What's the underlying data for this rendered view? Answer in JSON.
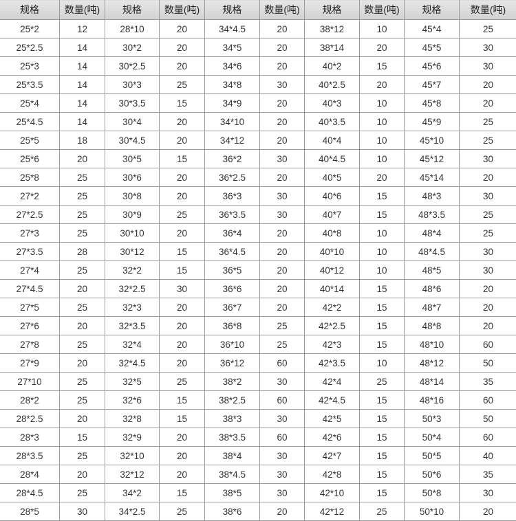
{
  "table": {
    "headers": [
      "规格",
      "数量(吨)",
      "规格",
      "数量(吨)",
      "规格",
      "数量(吨)",
      "规格",
      "数量(吨)",
      "规格",
      "数量(吨)"
    ],
    "rows": [
      [
        "25*2",
        "12",
        "28*10",
        "20",
        "34*4.5",
        "20",
        "38*12",
        "10",
        "45*4",
        "25"
      ],
      [
        "25*2.5",
        "14",
        "30*2",
        "20",
        "34*5",
        "20",
        "38*14",
        "20",
        "45*5",
        "30"
      ],
      [
        "25*3",
        "14",
        "30*2.5",
        "20",
        "34*6",
        "20",
        "40*2",
        "15",
        "45*6",
        "30"
      ],
      [
        "25*3.5",
        "14",
        "30*3",
        "25",
        "34*8",
        "30",
        "40*2.5",
        "20",
        "45*7",
        "20"
      ],
      [
        "25*4",
        "14",
        "30*3.5",
        "15",
        "34*9",
        "20",
        "40*3",
        "10",
        "45*8",
        "20"
      ],
      [
        "25*4.5",
        "14",
        "30*4",
        "20",
        "34*10",
        "20",
        "40*3.5",
        "10",
        "45*9",
        "25"
      ],
      [
        "25*5",
        "18",
        "30*4.5",
        "20",
        "34*12",
        "20",
        "40*4",
        "10",
        "45*10",
        "25"
      ],
      [
        "25*6",
        "20",
        "30*5",
        "15",
        "36*2",
        "30",
        "40*4.5",
        "10",
        "45*12",
        "30"
      ],
      [
        "25*8",
        "25",
        "30*6",
        "20",
        "36*2.5",
        "20",
        "40*5",
        "20",
        "45*14",
        "20"
      ],
      [
        "27*2",
        "25",
        "30*8",
        "20",
        "36*3",
        "30",
        "40*6",
        "15",
        "48*3",
        "30"
      ],
      [
        "27*2.5",
        "25",
        "30*9",
        "25",
        "36*3.5",
        "30",
        "40*7",
        "15",
        "48*3.5",
        "25"
      ],
      [
        "27*3",
        "25",
        "30*10",
        "20",
        "36*4",
        "20",
        "40*8",
        "10",
        "48*4",
        "25"
      ],
      [
        "27*3.5",
        "28",
        "30*12",
        "15",
        "36*4.5",
        "20",
        "40*10",
        "10",
        "48*4.5",
        "30"
      ],
      [
        "27*4",
        "25",
        "32*2",
        "15",
        "36*5",
        "20",
        "40*12",
        "10",
        "48*5",
        "30"
      ],
      [
        "27*4.5",
        "20",
        "32*2.5",
        "30",
        "36*6",
        "20",
        "40*14",
        "15",
        "48*6",
        "20"
      ],
      [
        "27*5",
        "25",
        "32*3",
        "20",
        "36*7",
        "20",
        "42*2",
        "15",
        "48*7",
        "20"
      ],
      [
        "27*6",
        "20",
        "32*3.5",
        "20",
        "36*8",
        "25",
        "42*2.5",
        "15",
        "48*8",
        "20"
      ],
      [
        "27*8",
        "25",
        "32*4",
        "20",
        "36*10",
        "25",
        "42*3",
        "15",
        "48*10",
        "60"
      ],
      [
        "27*9",
        "20",
        "32*4.5",
        "20",
        "36*12",
        "60",
        "42*3.5",
        "10",
        "48*12",
        "50"
      ],
      [
        "27*10",
        "25",
        "32*5",
        "25",
        "38*2",
        "30",
        "42*4",
        "25",
        "48*14",
        "35"
      ],
      [
        "28*2",
        "25",
        "32*6",
        "15",
        "38*2.5",
        "60",
        "42*4.5",
        "15",
        "48*16",
        "60"
      ],
      [
        "28*2.5",
        "20",
        "32*8",
        "15",
        "38*3",
        "30",
        "42*5",
        "15",
        "50*3",
        "50"
      ],
      [
        "28*3",
        "15",
        "32*9",
        "20",
        "38*3.5",
        "60",
        "42*6",
        "15",
        "50*4",
        "60"
      ],
      [
        "28*3.5",
        "25",
        "32*10",
        "20",
        "38*4",
        "30",
        "42*7",
        "15",
        "50*5",
        "40"
      ],
      [
        "28*4",
        "20",
        "32*12",
        "20",
        "38*4.5",
        "30",
        "42*8",
        "15",
        "50*6",
        "35"
      ],
      [
        "28*4.5",
        "25",
        "34*2",
        "15",
        "38*5",
        "30",
        "42*10",
        "15",
        "50*8",
        "30"
      ],
      [
        "28*5",
        "30",
        "34*2.5",
        "25",
        "38*6",
        "20",
        "42*12",
        "25",
        "50*10",
        "20"
      ]
    ]
  }
}
